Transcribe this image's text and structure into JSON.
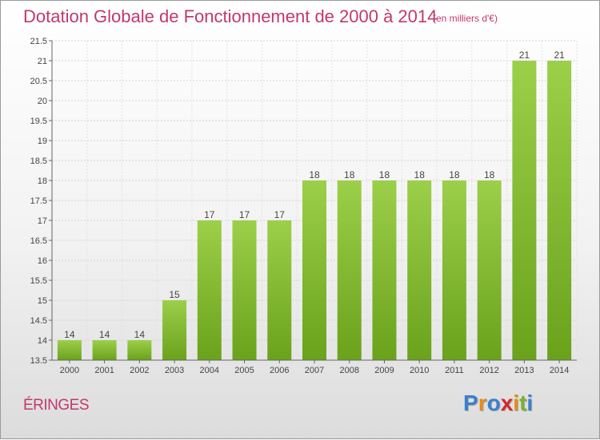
{
  "header": {
    "title": "Dotation Globale de Fonctionnement de 2000 à 2014",
    "subtitle": "(en milliers d'€)"
  },
  "footer": {
    "commune": "ÉRINGES",
    "logo": "Proxiti",
    "logo_colors": [
      "#3a7fd0",
      "#e58a1f",
      "#3a7fd0",
      "#d8262d",
      "#e58a1f",
      "#7ab32a",
      "#3a7fd0"
    ]
  },
  "chart_data": {
    "type": "bar",
    "categories": [
      "2000",
      "2001",
      "2002",
      "2003",
      "2004",
      "2005",
      "2006",
      "2007",
      "2008",
      "2009",
      "2010",
      "2011",
      "2012",
      "2013",
      "2014"
    ],
    "values": [
      14,
      14,
      14,
      15,
      17,
      17,
      17,
      18,
      18,
      18,
      18,
      18,
      18,
      21,
      21
    ],
    "data_labels": [
      "14",
      "14",
      "14",
      "15",
      "17",
      "17",
      "17",
      "18",
      "18",
      "18",
      "18",
      "18",
      "18",
      "21",
      "21"
    ],
    "ylim": [
      13.5,
      21.5
    ],
    "yticks": [
      "13.5",
      "14",
      "14.5",
      "15",
      "15.5",
      "16",
      "16.5",
      "17",
      "17.5",
      "18",
      "18.5",
      "19",
      "19.5",
      "20",
      "20.5",
      "21",
      "21.5"
    ],
    "grid": true,
    "bar_color_top": "#9ccf4a",
    "bar_color_bottom": "#6aa21c"
  }
}
